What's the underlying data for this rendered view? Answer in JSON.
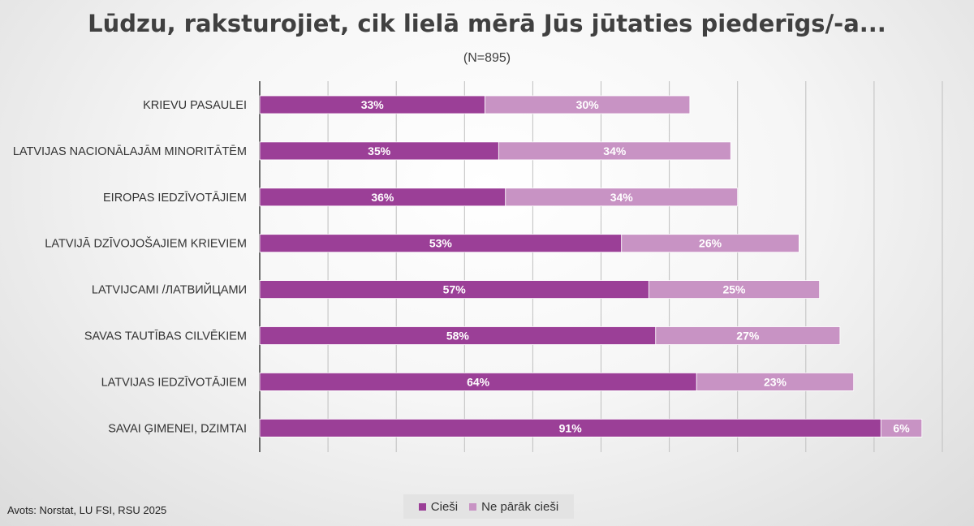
{
  "title": "Lūdzu, raksturojiet, cik lielā mērā Jūs jūtaties piederīgs/-a...",
  "subtitle": "(N=895)",
  "source": "Avots: Norstat, LU FSI, RSU 2025",
  "colors": {
    "series1": "#9b3f97",
    "series2": "#c893c4",
    "grid": "#bfbfbf",
    "axis": "#404040"
  },
  "chart_data": {
    "type": "bar",
    "orientation": "horizontal",
    "stacked": true,
    "categories": [
      "KRIEVU PASAULEI",
      "LATVIJAS NACIONĀLAJĀM MINORITĀTĒM",
      "EIROPAS IEDZĪVOTĀJIEM",
      "LATVIJĀ DZĪVOJOŠAJIEM KRIEVIEM",
      "LATVIJCAMI /ЛАТВИЙЦАМИ",
      "SAVAS TAUTĪBAS CILVĒKIEM",
      "LATVIJAS IEDZĪVOTĀJIEM",
      "SAVAI ĢIMENEI, DZIMTAI"
    ],
    "series": [
      {
        "name": "Cieši",
        "values": [
          33,
          35,
          36,
          53,
          57,
          58,
          64,
          91
        ],
        "labels": [
          "33%",
          "35%",
          "36%",
          "53%",
          "57%",
          "58%",
          "64%",
          "91%"
        ]
      },
      {
        "name": "Ne pārāk cieši",
        "values": [
          30,
          34,
          34,
          26,
          25,
          27,
          23,
          6
        ],
        "labels": [
          "30%",
          "34%",
          "34%",
          "26%",
          "25%",
          "27%",
          "23%",
          "6%"
        ]
      }
    ],
    "xlim": [
      0,
      100
    ],
    "grid": true,
    "legend": "bottom"
  }
}
